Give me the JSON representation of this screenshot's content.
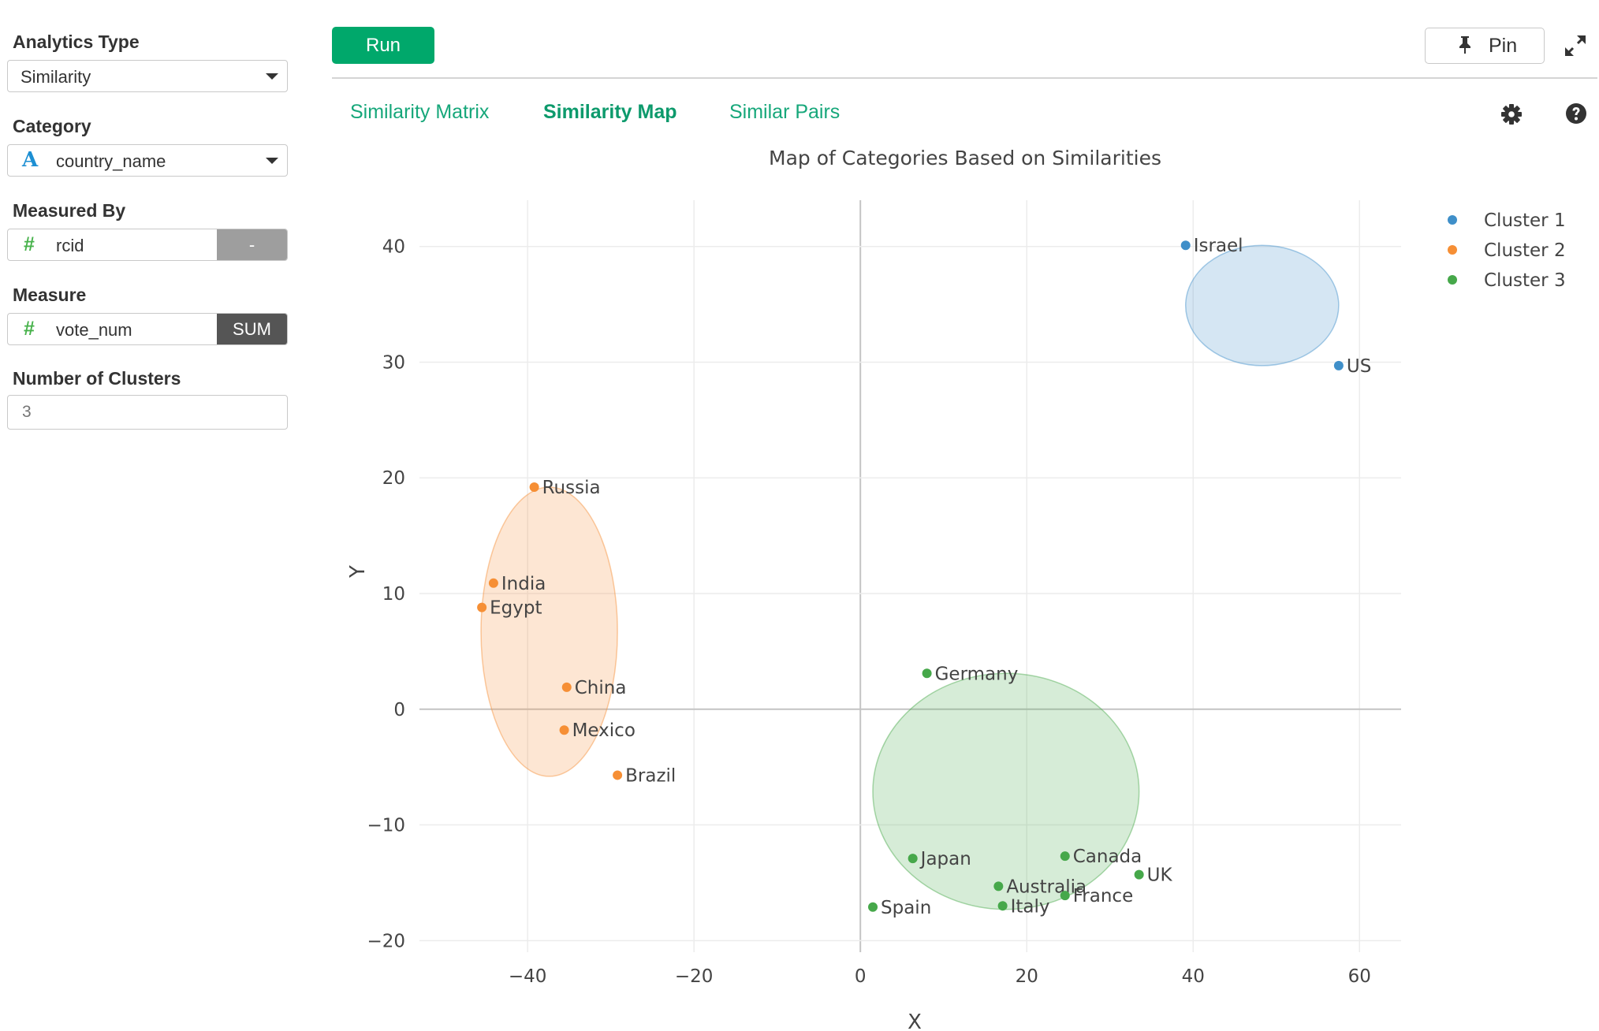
{
  "sidebar": {
    "analytics_type": {
      "label": "Analytics Type",
      "value": "Similarity"
    },
    "category": {
      "label": "Category",
      "value": "country_name"
    },
    "measured_by": {
      "label": "Measured By",
      "value": "rcid",
      "aggregation": "-"
    },
    "measure": {
      "label": "Measure",
      "value": "vote_num",
      "aggregation": "SUM"
    },
    "clusters": {
      "label": "Number of Clusters",
      "placeholder": "3"
    }
  },
  "toolbar": {
    "run_label": "Run",
    "pin_label": "Pin"
  },
  "tabs": [
    {
      "label": "Similarity Matrix",
      "active": false
    },
    {
      "label": "Similarity Map",
      "active": true
    },
    {
      "label": "Similar Pairs",
      "active": false
    }
  ],
  "icons": {
    "category_type": "text-type-icon",
    "measure_type": "number-hash-icon",
    "pin": "pin-icon",
    "expand": "expand-icon",
    "settings": "gear-icon",
    "help": "help-icon",
    "dropdown": "chevron-down-icon"
  },
  "colors": {
    "accent": "#00a86b",
    "tab_text": "#16a77a",
    "aggregation_dash_bg": "#9e9e9e",
    "aggregation_sum_bg": "#555555"
  },
  "chart_data": {
    "type": "scatter",
    "title": "Map of Categories Based on Similarities",
    "xlabel": "X",
    "ylabel": "Y",
    "xlim": [
      -53,
      65
    ],
    "ylim": [
      -21,
      44
    ],
    "x_ticks": [
      -40,
      -20,
      0,
      20,
      40,
      60
    ],
    "x_tick_labels": [
      "−40",
      "−20",
      "0",
      "20",
      "40",
      "60"
    ],
    "y_ticks": [
      -20,
      -10,
      0,
      10,
      20,
      30,
      40
    ],
    "y_tick_labels": [
      "−20",
      "−10",
      "0",
      "10",
      "20",
      "30",
      "40"
    ],
    "grid": true,
    "legend_position": "top-right",
    "series": [
      {
        "name": "Cluster 1",
        "color": "#3f8fc9",
        "points": [
          {
            "label": "Israel",
            "x": 39.1,
            "y": 40.1
          },
          {
            "label": "US",
            "x": 57.5,
            "y": 29.7
          }
        ],
        "ellipse": {
          "cx": 48.3,
          "cy": 34.9,
          "rx": 9.2,
          "ry": 5.2
        }
      },
      {
        "name": "Cluster 2",
        "color": "#f68f35",
        "points": [
          {
            "label": "Russia",
            "x": -39.2,
            "y": 19.2
          },
          {
            "label": "India",
            "x": -44.1,
            "y": 10.9
          },
          {
            "label": "Egypt",
            "x": -45.5,
            "y": 8.8
          },
          {
            "label": "China",
            "x": -35.3,
            "y": 1.9
          },
          {
            "label": "Mexico",
            "x": -35.6,
            "y": -1.8
          },
          {
            "label": "Brazil",
            "x": -29.2,
            "y": -5.7
          }
        ],
        "ellipse": {
          "cx": -37.4,
          "cy": 6.7,
          "rx": 8.2,
          "ry": 12.5
        }
      },
      {
        "name": "Cluster 3",
        "color": "#46a84a",
        "points": [
          {
            "label": "Germany",
            "x": 8.0,
            "y": 3.1
          },
          {
            "label": "Japan",
            "x": 6.3,
            "y": -12.9
          },
          {
            "label": "Canada",
            "x": 24.6,
            "y": -12.7
          },
          {
            "label": "UK",
            "x": 33.5,
            "y": -14.3
          },
          {
            "label": "Australia",
            "x": 16.6,
            "y": -15.3
          },
          {
            "label": "France",
            "x": 24.6,
            "y": -16.1
          },
          {
            "label": "Italy",
            "x": 17.1,
            "y": -17.0
          },
          {
            "label": "Spain",
            "x": 1.5,
            "y": -17.1
          }
        ],
        "ellipse": {
          "cx": 17.5,
          "cy": -7.1,
          "rx": 16.0,
          "ry": 10.2
        }
      }
    ]
  }
}
